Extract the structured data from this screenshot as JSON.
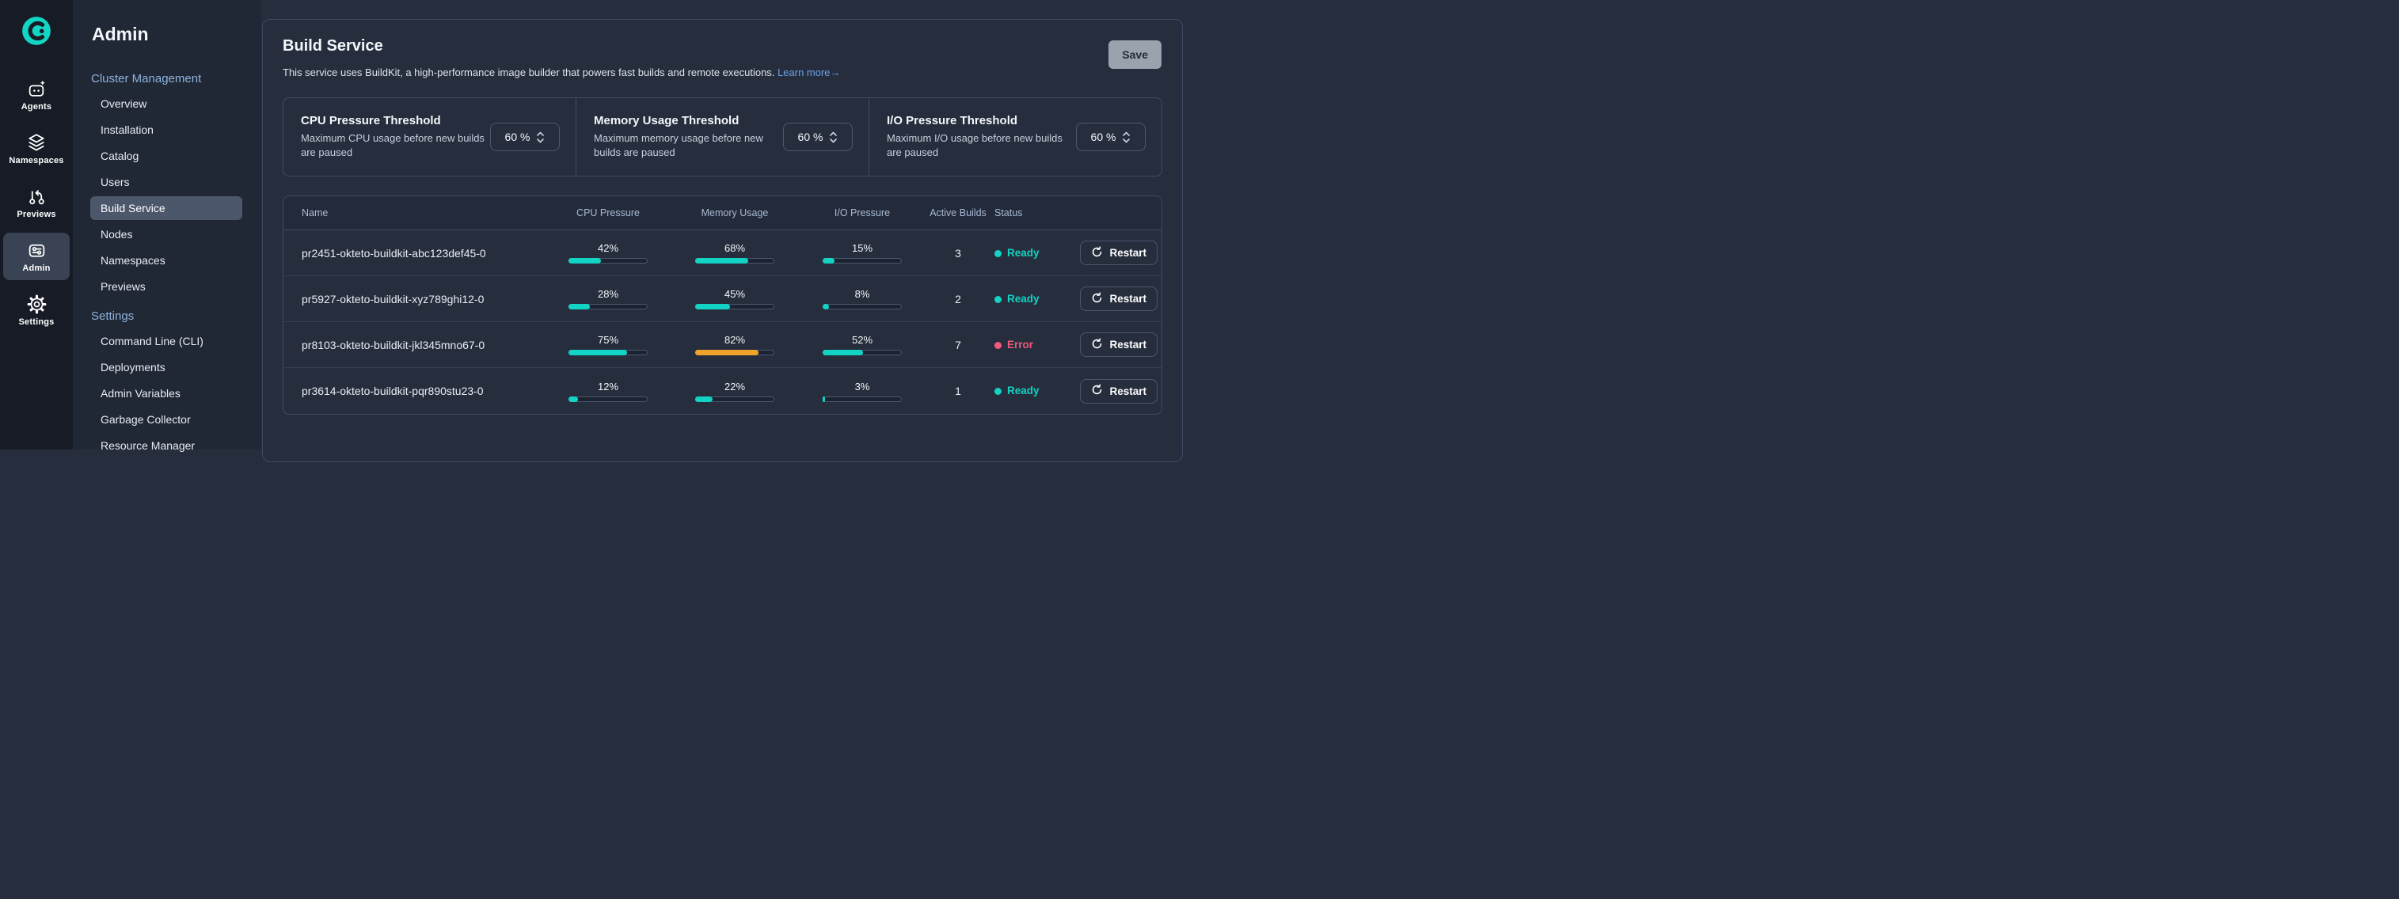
{
  "colors": {
    "accent": "#12d3c4",
    "warn": "#f0a32b",
    "error": "#f4587a",
    "link": "#6aa2e8"
  },
  "rail": {
    "logo": "okteto-logo",
    "items": [
      {
        "label": "Agents",
        "icon": "agents-icon",
        "active": false
      },
      {
        "label": "Namespaces",
        "icon": "namespaces-icon",
        "active": false
      },
      {
        "label": "Previews",
        "icon": "previews-icon",
        "active": false
      },
      {
        "label": "Admin",
        "icon": "admin-icon",
        "active": true
      },
      {
        "label": "Settings",
        "icon": "settings-icon",
        "active": false
      }
    ]
  },
  "sidebar": {
    "title": "Admin",
    "sections": [
      {
        "label": "Cluster Management",
        "items": [
          {
            "label": "Overview",
            "active": false
          },
          {
            "label": "Installation",
            "active": false
          },
          {
            "label": "Catalog",
            "active": false
          },
          {
            "label": "Users",
            "active": false
          },
          {
            "label": "Build Service",
            "active": true
          },
          {
            "label": "Nodes",
            "active": false
          },
          {
            "label": "Namespaces",
            "active": false
          },
          {
            "label": "Previews",
            "active": false
          }
        ]
      },
      {
        "label": "Settings",
        "items": [
          {
            "label": "Command Line (CLI)",
            "active": false
          },
          {
            "label": "Deployments",
            "active": false
          },
          {
            "label": "Admin Variables",
            "active": false
          },
          {
            "label": "Garbage Collector",
            "active": false
          },
          {
            "label": "Resource Manager",
            "active": false
          }
        ]
      }
    ]
  },
  "header": {
    "title": "Build Service",
    "description": "This service uses BuildKit, a high-performance image builder that powers fast builds and remote executions.",
    "learn_more": "Learn more",
    "arrow": "→",
    "save": "Save"
  },
  "thresholds": [
    {
      "title": "CPU Pressure Threshold",
      "description": "Maximum CPU usage before new builds are paused",
      "value": "60",
      "unit": "%"
    },
    {
      "title": "Memory Usage Threshold",
      "description": "Maximum memory usage before new builds are paused",
      "value": "60",
      "unit": "%"
    },
    {
      "title": "I/O Pressure Threshold",
      "description": "Maximum I/O usage before new builds are paused",
      "value": "60",
      "unit": "%"
    }
  ],
  "table": {
    "columns": [
      "Name",
      "CPU Pressure",
      "Memory Usage",
      "I/O Pressure",
      "Active Builds",
      "Status"
    ],
    "restart_label": "Restart",
    "rows": [
      {
        "name": "pr2451-okteto-buildkit-abc123def45-0",
        "cpu": 42,
        "memory": 68,
        "io": 15,
        "active_builds": 3,
        "status": "Ready"
      },
      {
        "name": "pr5927-okteto-buildkit-xyz789ghi12-0",
        "cpu": 28,
        "memory": 45,
        "io": 8,
        "active_builds": 2,
        "status": "Ready"
      },
      {
        "name": "pr8103-okteto-buildkit-jkl345mno67-0",
        "cpu": 75,
        "memory": 82,
        "io": 52,
        "active_builds": 7,
        "status": "Error"
      },
      {
        "name": "pr3614-okteto-buildkit-pqr890stu23-0",
        "cpu": 12,
        "memory": 22,
        "io": 3,
        "active_builds": 1,
        "status": "Ready"
      }
    ]
  }
}
